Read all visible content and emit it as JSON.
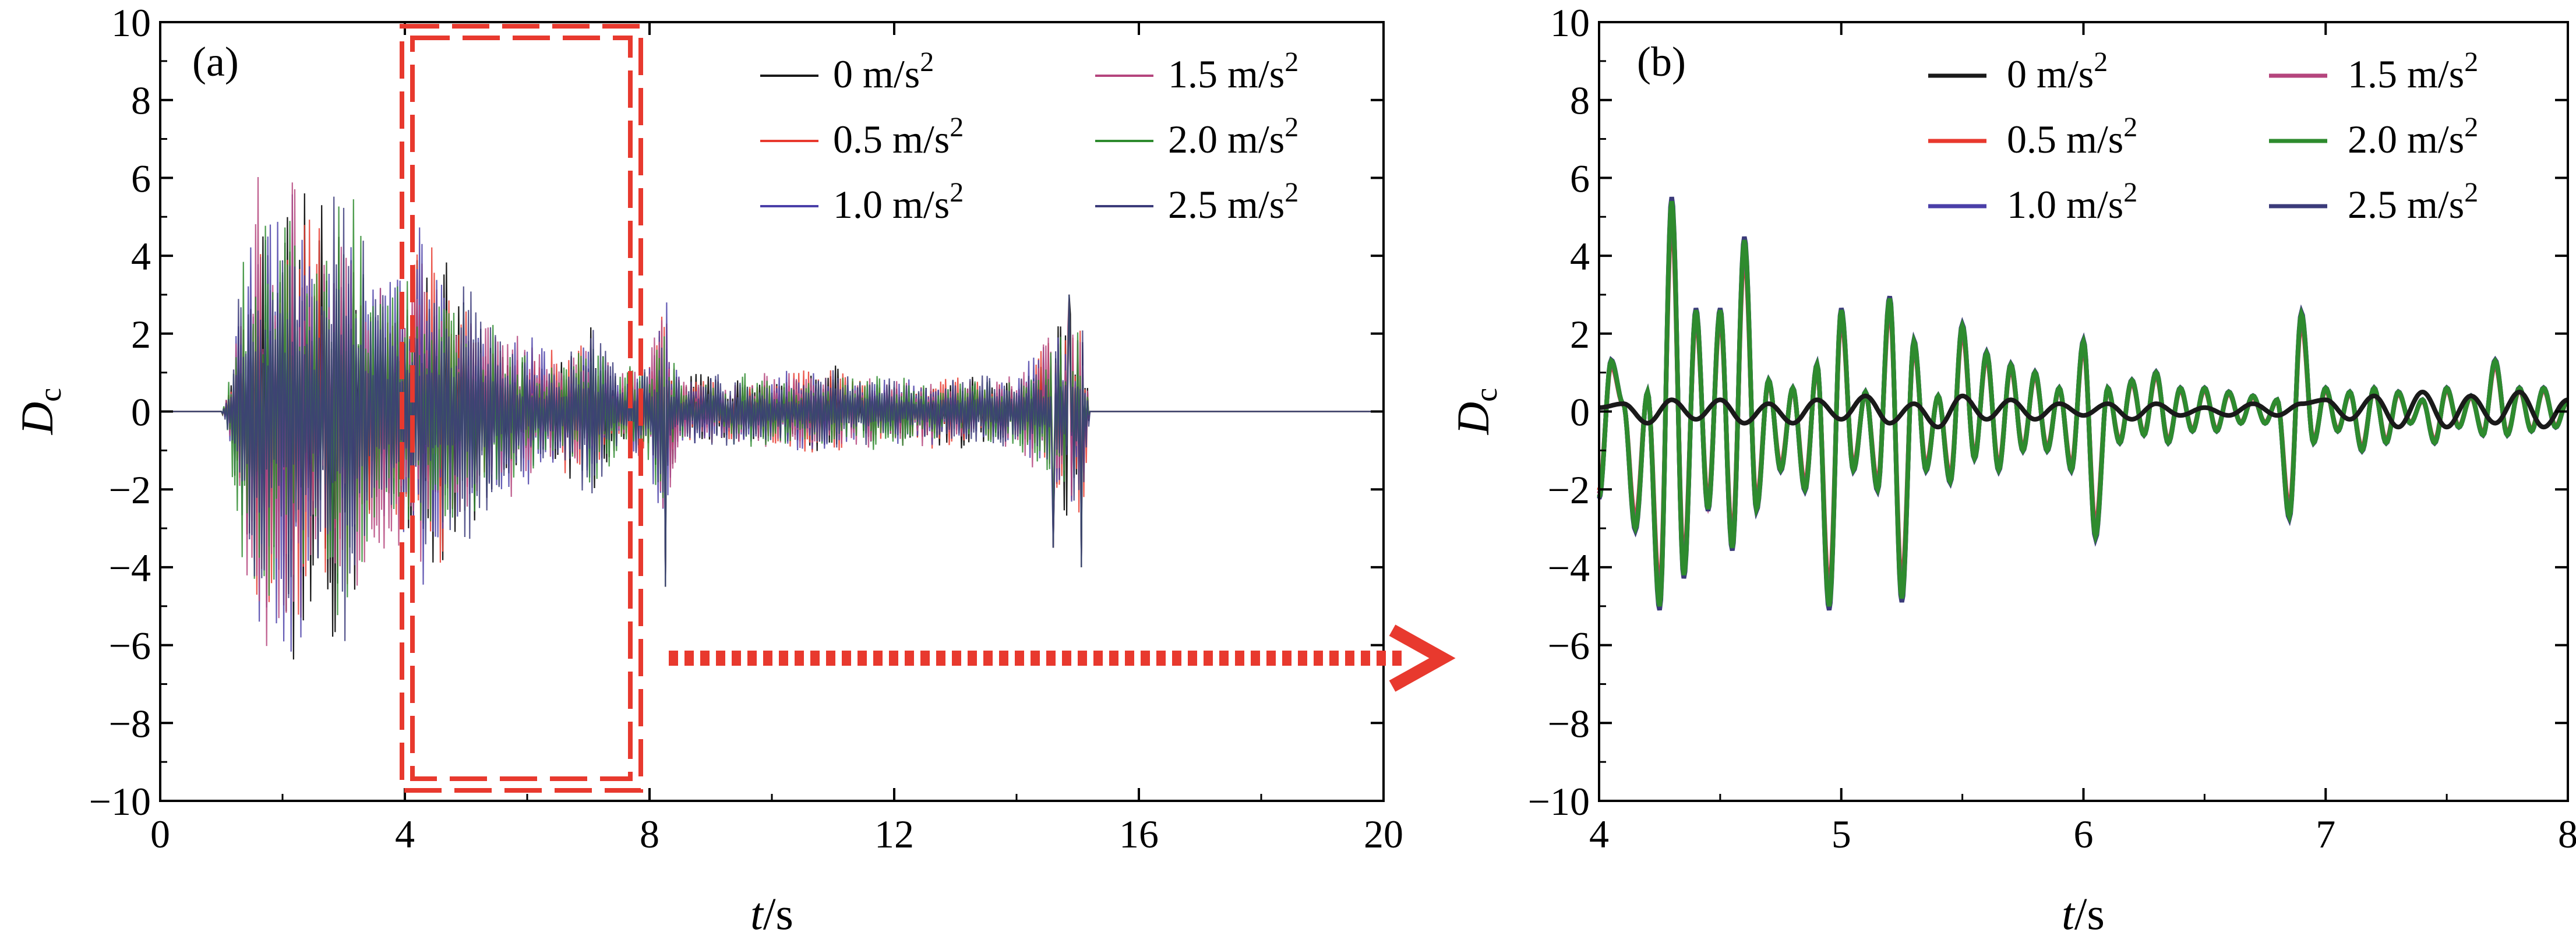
{
  "figure": {
    "arrow_color": "#e8392e",
    "highlight_color": "#e8392e"
  },
  "chart_data": [
    {
      "type": "line",
      "panel_label": "(a)",
      "title": "",
      "xlabel": "t/s",
      "xlabel_italic": "t",
      "xlabel_unit": "/s",
      "ylabel": "D_c",
      "ylabel_main": "D",
      "ylabel_sub": "c",
      "xlim": [
        0,
        20
      ],
      "ylim": [
        -10,
        10
      ],
      "xticks": [
        0,
        4,
        8,
        12,
        16,
        20
      ],
      "yticks": [
        -10,
        -8,
        -6,
        -4,
        -2,
        0,
        2,
        4,
        6,
        8,
        10
      ],
      "xtick_labels": [
        "0",
        "4",
        "8",
        "12",
        "16",
        "20"
      ],
      "ytick_labels": [
        "−10",
        "−8",
        "−6",
        "−4",
        "−2",
        "0",
        "2",
        "4",
        "6",
        "8",
        "10"
      ],
      "legend_location": "top-right",
      "highlight_region": {
        "x": [
          4,
          7.8
        ],
        "y": [
          -9.7,
          9.7
        ],
        "style": "dashed double border"
      },
      "series": [
        {
          "name": "0 m/s",
          "sup": "2",
          "color": "#1a1a1a",
          "amplitude": 1.0
        },
        {
          "name": "0.5 m/s",
          "sup": "2",
          "color": "#e8392e",
          "amplitude": 1.0
        },
        {
          "name": "1.0 m/s",
          "sup": "2",
          "color": "#4a3fa8",
          "amplitude": 1.0
        },
        {
          "name": "1.5 m/s",
          "sup": "2",
          "color": "#b5457d",
          "amplitude": 1.0
        },
        {
          "name": "2.0 m/s",
          "sup": "2",
          "color": "#2e8b2e",
          "amplitude": 1.0
        },
        {
          "name": "2.5 m/s",
          "sup": "2",
          "color": "#3b3b7a",
          "amplitude": 1.0
        }
      ],
      "envelope": {
        "t": [
          0,
          1.0,
          1.1,
          1.4,
          1.6,
          1.9,
          2.2,
          2.5,
          2.8,
          3.1,
          3.4,
          3.8,
          4.2,
          4.6,
          5.0,
          5.5,
          6.0,
          6.5,
          7.0,
          7.5,
          8.0,
          8.2,
          8.5,
          9.0,
          10.0,
          11.0,
          12.0,
          13.0,
          14.0,
          14.5,
          14.8,
          15.0,
          15.1,
          15.2,
          20.0
        ],
        "amp": [
          0,
          0,
          0.5,
          5.0,
          6.5,
          6.0,
          7.5,
          5.0,
          6.0,
          6.5,
          4.0,
          3.5,
          5.0,
          4.0,
          3.5,
          2.5,
          2.0,
          1.5,
          2.5,
          1.0,
          1.5,
          3.5,
          1.0,
          1.0,
          1.0,
          1.2,
          1.0,
          1.0,
          1.0,
          2.0,
          3.0,
          3.0,
          2.5,
          0,
          0
        ]
      },
      "spikes": [
        {
          "t": 8.25,
          "value": -4.5
        },
        {
          "t": 14.6,
          "value": -3.5
        },
        {
          "t": 14.85,
          "value": 3.0
        },
        {
          "t": 15.05,
          "value": -4.0
        }
      ]
    },
    {
      "type": "line",
      "panel_label": "(b)",
      "title": "",
      "xlabel": "t/s",
      "xlabel_italic": "t",
      "xlabel_unit": "/s",
      "ylabel": "D_c",
      "ylabel_main": "D",
      "ylabel_sub": "c",
      "xlim": [
        4,
        8
      ],
      "ylim": [
        -10,
        10
      ],
      "xticks": [
        4,
        5,
        6,
        7,
        8
      ],
      "yticks": [
        -10,
        -8,
        -6,
        -4,
        -2,
        0,
        2,
        4,
        6,
        8,
        10
      ],
      "xtick_labels": [
        "4",
        "5",
        "6",
        "7",
        "8"
      ],
      "ytick_labels": [
        "−10",
        "−8",
        "−6",
        "−4",
        "−2",
        "0",
        "2",
        "4",
        "6",
        "8",
        "10"
      ],
      "legend_location": "top-right",
      "series": [
        {
          "name": "0 m/s",
          "sup": "2",
          "color": "#1a1a1a",
          "t": [
            4.0,
            4.1,
            4.2,
            4.3,
            4.4,
            4.5,
            4.6,
            4.7,
            4.8,
            4.9,
            5.0,
            5.1,
            5.2,
            5.3,
            5.4,
            5.5,
            5.6,
            5.7,
            5.8,
            5.9,
            6.0,
            6.1,
            6.2,
            6.3,
            6.4,
            6.5,
            6.6,
            6.7,
            6.8,
            6.9,
            7.0,
            7.1,
            7.2,
            7.3,
            7.4,
            7.5,
            7.6,
            7.7,
            7.8,
            7.9,
            8.0
          ],
          "values": [
            0.1,
            0.2,
            -0.3,
            0.3,
            -0.2,
            0.3,
            -0.3,
            0.2,
            -0.3,
            0.3,
            -0.2,
            0.4,
            -0.3,
            0.2,
            -0.4,
            0.4,
            -0.2,
            0.3,
            -0.2,
            0.2,
            -0.1,
            0.2,
            -0.2,
            0.2,
            -0.1,
            0.1,
            -0.1,
            0.2,
            -0.1,
            0.2,
            0.3,
            -0.2,
            0.4,
            -0.4,
            0.5,
            -0.4,
            0.4,
            -0.3,
            0.5,
            -0.4,
            0.3
          ]
        },
        {
          "name": "0.5 m/s",
          "sup": "2",
          "color": "#e8392e",
          "scale": 0.92
        },
        {
          "name": "1.0 m/s",
          "sup": "2",
          "color": "#4a3fa8",
          "scale": 1.0
        },
        {
          "name": "1.5 m/s",
          "sup": "2",
          "color": "#b5457d",
          "scale": 0.96
        },
        {
          "name": "2.0 m/s",
          "sup": "2",
          "color": "#2e8b2e",
          "scale": 1.0
        },
        {
          "name": "2.5 m/s",
          "sup": "2",
          "color": "#3b3b7a",
          "scale": 1.02
        }
      ],
      "shared_wave": {
        "t": [
          4.0,
          4.05,
          4.1,
          4.15,
          4.2,
          4.25,
          4.3,
          4.35,
          4.4,
          4.45,
          4.5,
          4.55,
          4.6,
          4.65,
          4.7,
          4.75,
          4.8,
          4.85,
          4.9,
          4.95,
          5.0,
          5.05,
          5.1,
          5.15,
          5.2,
          5.25,
          5.3,
          5.35,
          5.4,
          5.45,
          5.5,
          5.55,
          5.6,
          5.65,
          5.7,
          5.75,
          5.8,
          5.85,
          5.9,
          5.95,
          6.0,
          6.05,
          6.1,
          6.15,
          6.2,
          6.25,
          6.3,
          6.35,
          6.4,
          6.45,
          6.5,
          6.55,
          6.6,
          6.65,
          6.7,
          6.75,
          6.8,
          6.85,
          6.9,
          6.95,
          7.0,
          7.05,
          7.1,
          7.15,
          7.2,
          7.25,
          7.3,
          7.35,
          7.4,
          7.45,
          7.5,
          7.55,
          7.6,
          7.65,
          7.7,
          7.75,
          7.8,
          7.85,
          7.9,
          7.95,
          8.0
        ],
        "values": [
          -2.2,
          1.3,
          0.2,
          -3.0,
          0.5,
          -5.0,
          5.4,
          -4.2,
          2.6,
          -2.5,
          2.6,
          -3.5,
          4.4,
          -2.5,
          0.8,
          -1.5,
          0.6,
          -2.0,
          1.2,
          -5.0,
          2.6,
          -1.5,
          0.5,
          -2.0,
          2.9,
          -4.8,
          1.8,
          -1.5,
          0.4,
          -1.8,
          2.2,
          -1.2,
          1.5,
          -1.5,
          1.2,
          -1.0,
          1.0,
          -1.0,
          0.6,
          -1.5,
          1.8,
          -3.2,
          0.6,
          -0.8,
          0.8,
          -0.6,
          1.0,
          -0.8,
          0.6,
          -0.5,
          0.6,
          -0.5,
          0.5,
          -0.3,
          0.4,
          -0.3,
          0.3,
          -2.7,
          2.5,
          -0.8,
          0.6,
          -0.5,
          0.5,
          -1.0,
          0.6,
          -0.8,
          0.5,
          -0.3,
          0.3,
          -0.8,
          0.6,
          -0.4,
          0.4,
          -0.6,
          1.3,
          -0.6,
          0.6,
          -0.5,
          0.6,
          -0.4,
          0.3
        ]
      }
    }
  ]
}
